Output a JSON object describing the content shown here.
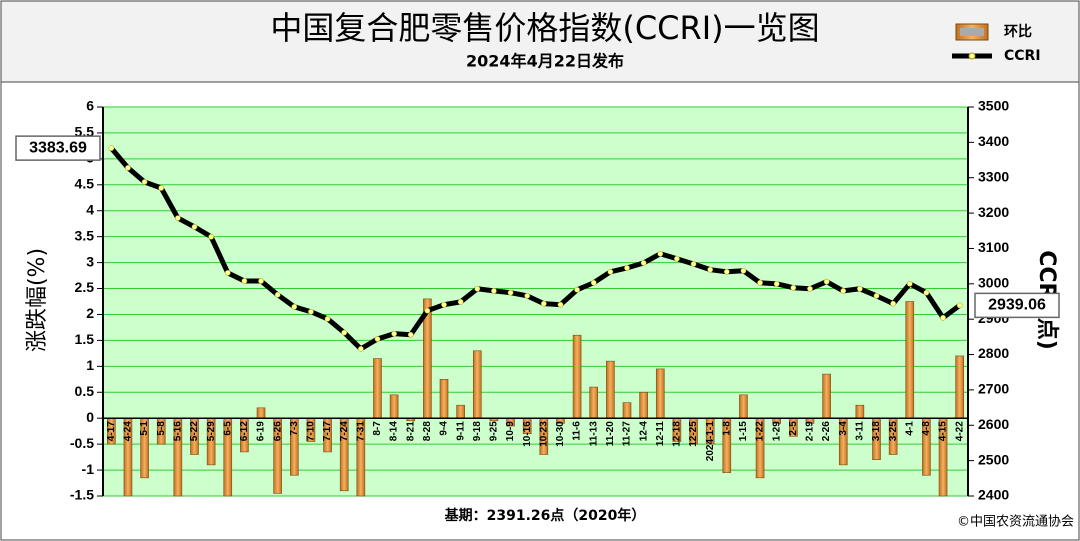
{
  "chart_data": {
    "type": "bar_line",
    "title": "中国复合肥零售价格指数(CCRI)一览图",
    "subtitle": "2024年4月22日发布",
    "y_label": "涨跌幅(%)",
    "y2_label": "CCRI(点)",
    "base_note": "基期：2391.26点（2020年）",
    "source": "©中国农资流通协会",
    "categories": [
      "4-17",
      "4-24",
      "5-1",
      "5-8",
      "5-16",
      "5-22",
      "5-29",
      "6-5",
      "6-12",
      "6-19",
      "6-26",
      "7-3",
      "7-10",
      "7-17",
      "7-24",
      "7-31",
      "8-7",
      "8-14",
      "8-21",
      "8-28",
      "9-4",
      "9-11",
      "9-18",
      "9-25",
      "10-9",
      "10-16",
      "10-23",
      "10-30",
      "11-6",
      "11-13",
      "11-20",
      "11-27",
      "12-4",
      "12-11",
      "12-18",
      "12-25",
      "2024-1-1",
      "1-8",
      "1-15",
      "1-22",
      "1-29",
      "2-5",
      "2-19",
      "2-26",
      "3-4",
      "3-11",
      "3-18",
      "3-25",
      "4-1",
      "4-8",
      "4-15",
      "4-22"
    ],
    "series": [
      {
        "name": "环比",
        "color": "#e0892c",
        "values": [
          -0.5,
          -1.5,
          -1.15,
          -0.5,
          -1.5,
          -0.7,
          -0.9,
          -1.5,
          -0.65,
          0.2,
          -1.45,
          -1.1,
          -0.45,
          -0.65,
          -1.4,
          -1.5,
          1.15,
          0.45,
          -0.05,
          2.3,
          0.75,
          0.25,
          1.3,
          -0.05,
          -0.15,
          -0.3,
          -0.7,
          -0.1,
          1.6,
          0.6,
          1.1,
          0.3,
          0.5,
          0.95,
          -0.45,
          -0.5,
          -0.5,
          -1.05,
          0.45,
          -1.15,
          -0.1,
          -0.35,
          -0.1,
          0.85,
          -0.9,
          0.25,
          -0.8,
          -0.7,
          2.25,
          -1.1,
          -1.5,
          1.2
        ]
      },
      {
        "name": "CCRI",
        "color": "#000000",
        "axis": "y2",
        "values": [
          3383.69,
          3328,
          3288,
          3271,
          3186,
          3161,
          3133,
          3031,
          3008,
          3008,
          2969,
          2935,
          2921,
          2901,
          2862,
          2816,
          2844,
          2859,
          2856,
          2924,
          2941,
          2949,
          2986,
          2980,
          2975,
          2966,
          2944,
          2941,
          2983,
          3003,
          3034,
          3045,
          3059,
          3085,
          3071,
          3056,
          3040,
          3034,
          3037,
          3003,
          3000,
          2989,
          2986,
          3006,
          2980,
          2986,
          2966,
          2944,
          3000,
          2975,
          2904,
          2939.06
        ]
      }
    ],
    "ylim": [
      -1.5,
      6
    ],
    "yticks": [
      -1.5,
      -1,
      -0.5,
      0,
      0.5,
      1,
      1.5,
      2,
      2.5,
      3,
      3.5,
      4,
      4.5,
      5,
      5.5,
      6
    ],
    "y2lim": [
      2400,
      3500
    ],
    "y2ticks": [
      2400,
      2500,
      2600,
      2700,
      2800,
      2900,
      3000,
      3100,
      3200,
      3300,
      3400,
      3500
    ],
    "grid": true,
    "legend": "top-right"
  }
}
